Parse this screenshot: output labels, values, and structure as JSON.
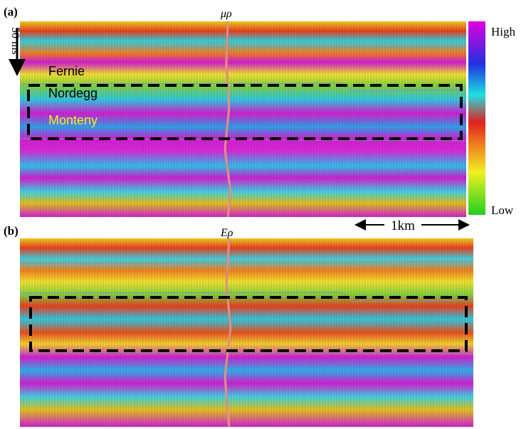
{
  "panels": [
    {
      "label": "(a)",
      "title": "μρ"
    },
    {
      "label": "(b)",
      "title": "Eρ"
    }
  ],
  "horizons": [
    "Fernie",
    "Nordegg",
    "Monteny"
  ],
  "colorbar": {
    "high": "High",
    "low": "Low"
  },
  "scale_bar": "1km",
  "time_scale": "50 ms"
}
